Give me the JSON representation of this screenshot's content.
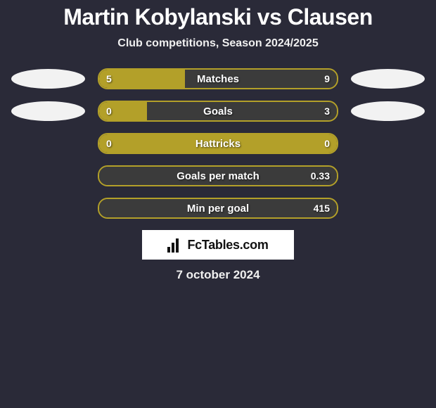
{
  "title": "Martin Kobylanski vs Clausen",
  "subtitle": "Club competitions, Season 2024/2025",
  "date": "7 october 2024",
  "badge_text": "FcTables.com",
  "colors": {
    "left_fill": "#b3a029",
    "right_fill": "#3b3b3b",
    "border": "#b3a029",
    "avatar_left": "#f2f2f2",
    "avatar_right": "#f2f2f2",
    "background": "#2a2a38"
  },
  "rows": [
    {
      "label": "Matches",
      "left_value": "5",
      "right_value": "9",
      "left_pct": 36,
      "right_pct": 64,
      "show_avatars": true
    },
    {
      "label": "Goals",
      "left_value": "0",
      "right_value": "3",
      "left_pct": 20,
      "right_pct": 80,
      "show_avatars": true
    },
    {
      "label": "Hattricks",
      "left_value": "0",
      "right_value": "0",
      "left_pct": 100,
      "right_pct": 0,
      "show_avatars": false
    },
    {
      "label": "Goals per match",
      "left_value": "",
      "right_value": "0.33",
      "left_pct": 0,
      "right_pct": 100,
      "show_avatars": false
    },
    {
      "label": "Min per goal",
      "left_value": "",
      "right_value": "415",
      "left_pct": 0,
      "right_pct": 100,
      "show_avatars": false
    }
  ]
}
